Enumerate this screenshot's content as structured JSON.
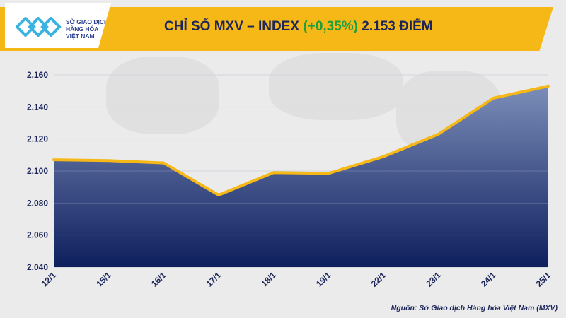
{
  "header": {
    "logo_lines": [
      "SỞ GIAO DỊCH",
      "HÀNG HÓA",
      "VIỆT NAM"
    ],
    "title_main": "CHỈ SỐ MXV – INDEX",
    "title_change": "(+0,35%)",
    "title_value": "2.153 ĐIỂM"
  },
  "colors": {
    "header_bg": "#f6b817",
    "area_top": "#7b8db8",
    "area_bottom": "#0e1f5e",
    "line": "#f6b817",
    "change_green": "#1e9e3c",
    "text_dark": "#1b2559"
  },
  "chart_data": {
    "type": "area",
    "categories": [
      "12/1",
      "15/1",
      "16/1",
      "17/1",
      "18/1",
      "19/1",
      "22/1",
      "23/1",
      "24/1",
      "25/1"
    ],
    "values": [
      2107,
      2106.5,
      2105,
      2085,
      2099,
      2098.5,
      2109,
      2123,
      2145.5,
      2153
    ],
    "ylim": [
      2040,
      2160
    ],
    "yticks": [
      2040,
      2060,
      2080,
      2100,
      2120,
      2140,
      2160
    ],
    "ytick_labels": [
      "2.040",
      "2.060",
      "2.080",
      "2.100",
      "2.120",
      "2.140",
      "2.160"
    ],
    "grid": true
  },
  "footer": {
    "source": "Nguồn: Sở Giao dịch Hàng hóa Việt Nam (MXV)"
  }
}
